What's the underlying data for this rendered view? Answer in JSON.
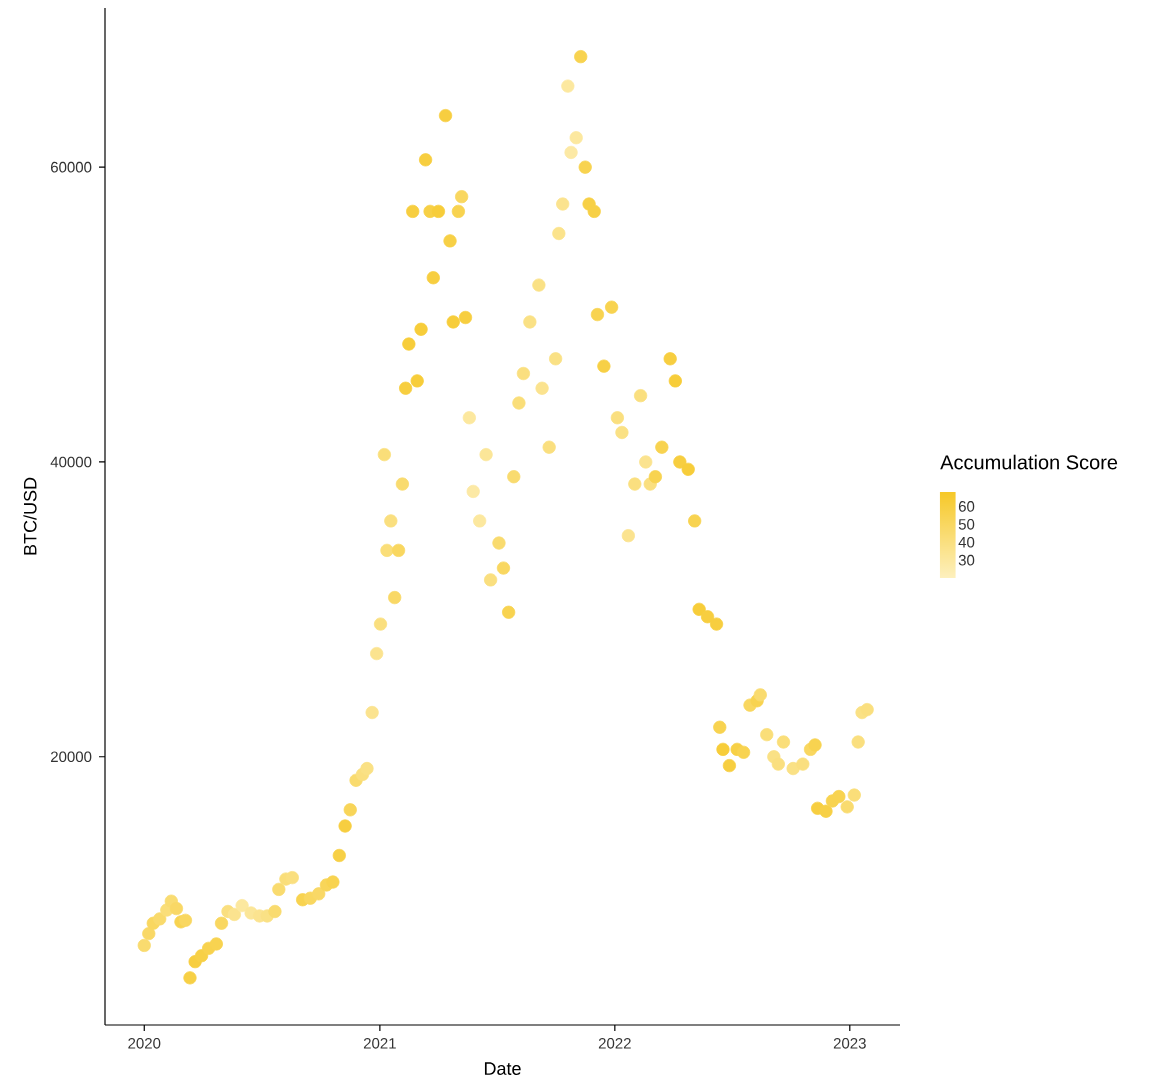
{
  "chart_data": {
    "type": "scatter",
    "xlabel": "Date",
    "ylabel": "BTC/USD",
    "clabel": "Accumulation Score",
    "x": [
      "2020-01-01",
      "2020-01-08",
      "2020-01-15",
      "2020-01-25",
      "2020-02-05",
      "2020-02-12",
      "2020-02-20",
      "2020-02-27",
      "2020-03-05",
      "2020-03-12",
      "2020-03-20",
      "2020-03-30",
      "2020-04-10",
      "2020-04-22",
      "2020-04-30",
      "2020-05-10",
      "2020-05-20",
      "2020-06-01",
      "2020-06-15",
      "2020-06-28",
      "2020-07-10",
      "2020-07-22",
      "2020-07-28",
      "2020-08-08",
      "2020-08-18",
      "2020-09-03",
      "2020-09-15",
      "2020-09-28",
      "2020-10-10",
      "2020-10-20",
      "2020-10-30",
      "2020-11-08",
      "2020-11-16",
      "2020-11-25",
      "2020-12-05",
      "2020-12-12",
      "2020-12-20",
      "2020-12-27",
      "2021-01-02",
      "2021-01-08",
      "2021-01-12",
      "2021-01-18",
      "2021-01-24",
      "2021-01-30",
      "2021-02-05",
      "2021-02-10",
      "2021-02-15",
      "2021-02-21",
      "2021-02-28",
      "2021-03-06",
      "2021-03-13",
      "2021-03-20",
      "2021-03-25",
      "2021-04-02",
      "2021-04-13",
      "2021-04-20",
      "2021-04-25",
      "2021-05-03",
      "2021-05-08",
      "2021-05-14",
      "2021-05-20",
      "2021-05-26",
      "2021-06-05",
      "2021-06-15",
      "2021-06-22",
      "2021-07-05",
      "2021-07-12",
      "2021-07-20",
      "2021-07-28",
      "2021-08-05",
      "2021-08-12",
      "2021-08-22",
      "2021-09-05",
      "2021-09-10",
      "2021-09-21",
      "2021-10-01",
      "2021-10-06",
      "2021-10-12",
      "2021-10-20",
      "2021-10-25",
      "2021-11-02",
      "2021-11-09",
      "2021-11-16",
      "2021-11-22",
      "2021-11-30",
      "2021-12-05",
      "2021-12-15",
      "2021-12-27",
      "2022-01-05",
      "2022-01-12",
      "2022-01-22",
      "2022-02-01",
      "2022-02-10",
      "2022-02-18",
      "2022-02-25",
      "2022-03-05",
      "2022-03-15",
      "2022-03-28",
      "2022-04-05",
      "2022-04-12",
      "2022-04-25",
      "2022-05-05",
      "2022-05-12",
      "2022-05-25",
      "2022-06-08",
      "2022-06-13",
      "2022-06-18",
      "2022-06-28",
      "2022-07-10",
      "2022-07-20",
      "2022-07-30",
      "2022-08-10",
      "2022-08-15",
      "2022-08-25",
      "2022-09-05",
      "2022-09-12",
      "2022-09-20",
      "2022-10-05",
      "2022-10-20",
      "2022-11-01",
      "2022-11-08",
      "2022-11-12",
      "2022-11-25",
      "2022-12-05",
      "2022-12-15",
      "2022-12-28",
      "2023-01-08",
      "2023-01-14",
      "2023-01-20",
      "2023-01-28"
    ],
    "values": [
      7200,
      8000,
      8700,
      9000,
      9600,
      10200,
      9700,
      8800,
      8900,
      5000,
      6100,
      6500,
      7000,
      7300,
      8700,
      9500,
      9300,
      9900,
      9400,
      9200,
      9200,
      9500,
      11000,
      11700,
      11800,
      10300,
      10400,
      10700,
      11300,
      11500,
      13300,
      15300,
      16400,
      18400,
      18800,
      19200,
      23000,
      27000,
      29000,
      40500,
      34000,
      36000,
      30800,
      34000,
      38500,
      45000,
      48000,
      57000,
      45500,
      49000,
      60500,
      57000,
      52500,
      57000,
      63500,
      55000,
      49500,
      57000,
      58000,
      49800,
      43000,
      38000,
      36000,
      40500,
      32000,
      34500,
      32800,
      29800,
      39000,
      44000,
      46000,
      49500,
      52000,
      45000,
      41000,
      47000,
      55500,
      57500,
      65500,
      61000,
      62000,
      67500,
      60000,
      57500,
      57000,
      50000,
      46500,
      50500,
      43000,
      42000,
      35000,
      38500,
      44500,
      40000,
      38500,
      39000,
      41000,
      47000,
      45500,
      40000,
      39500,
      36000,
      30000,
      29500,
      29000,
      22000,
      20500,
      19400,
      20500,
      20300,
      23500,
      23800,
      24200,
      21500,
      20000,
      19500,
      21000,
      19200,
      19500,
      20500,
      20800,
      16500,
      16300,
      17000,
      17300,
      16600,
      17400,
      21000,
      23000,
      23200
    ],
    "cvalues": [
      45,
      48,
      50,
      46,
      42,
      44,
      48,
      55,
      50,
      58,
      60,
      58,
      56,
      55,
      50,
      40,
      35,
      30,
      32,
      35,
      38,
      45,
      45,
      42,
      40,
      55,
      50,
      48,
      52,
      55,
      58,
      60,
      52,
      45,
      40,
      38,
      35,
      35,
      40,
      42,
      42,
      40,
      48,
      50,
      45,
      60,
      62,
      60,
      62,
      62,
      60,
      58,
      60,
      62,
      60,
      58,
      62,
      55,
      50,
      60,
      30,
      28,
      30,
      32,
      40,
      45,
      50,
      55,
      45,
      42,
      40,
      38,
      38,
      35,
      40,
      38,
      36,
      35,
      30,
      28,
      30,
      55,
      55,
      58,
      58,
      55,
      58,
      55,
      40,
      38,
      35,
      40,
      40,
      35,
      40,
      55,
      55,
      60,
      62,
      60,
      62,
      55,
      62,
      60,
      60,
      55,
      62,
      60,
      58,
      55,
      50,
      55,
      45,
      42,
      38,
      40,
      42,
      38,
      40,
      50,
      55,
      60,
      58,
      55,
      55,
      45,
      42,
      40,
      38,
      40
    ],
    "xlim": [
      "2019-11-01",
      "2023-03-20"
    ],
    "ylim": [
      1800,
      70800
    ],
    "xticks": [
      "2020",
      "2021",
      "2022",
      "2023"
    ],
    "yticks": [
      20000,
      40000,
      60000
    ],
    "clim": [
      20,
      68
    ],
    "cticks": [
      30,
      40,
      50,
      60
    ],
    "marker": "circle"
  }
}
